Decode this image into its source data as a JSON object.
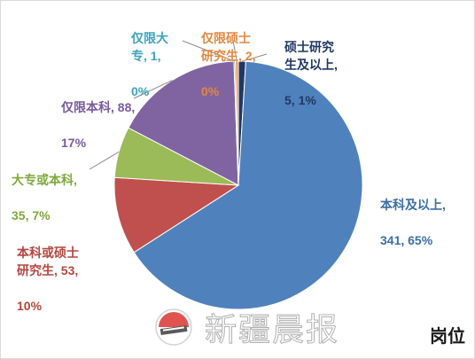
{
  "chart_data": {
    "type": "pie",
    "title": "",
    "legend": "none",
    "axis_title": "岗位",
    "slices": [
      {
        "name": "本科及以上",
        "value": 341,
        "percent": "65%",
        "color": "#4f81bd"
      },
      {
        "name": "本科或硕士研究生",
        "value": 53,
        "percent": "10%",
        "color": "#c0504d"
      },
      {
        "name": "大专或本科",
        "value": 35,
        "percent": "7%",
        "color": "#9bbb59"
      },
      {
        "name": "仅限本科",
        "value": 88,
        "percent": "17%",
        "color": "#8064a2"
      },
      {
        "name": "仅限大专",
        "value": 1,
        "percent": "0%",
        "color": "#4bacc6"
      },
      {
        "name": "仅限硕士研究生",
        "value": 2,
        "percent": "0%",
        "color": "#f79646"
      },
      {
        "name": "硕士研究生及以上",
        "value": 5,
        "percent": "1%",
        "color": "#1f3864"
      }
    ],
    "labels": [
      {
        "line1": "本科及以上,",
        "line2": "341, 65%"
      },
      {
        "line1": "本科或硕士\n研究生, 53,",
        "line2": "10%"
      },
      {
        "line1": "大专或本科,",
        "line2": "35, 7%"
      },
      {
        "line1": "仅限本科, 88,",
        "line2": "17%"
      },
      {
        "line1": "仅限大\n专, 1,",
        "line2": "0%"
      },
      {
        "line1": "仅限硕士\n研究生, 2,",
        "line2": "0%"
      },
      {
        "line1": "硕士研究\n生及以上,",
        "line2": "5, 1%"
      }
    ]
  },
  "watermark": {
    "text": "新疆晨报",
    "logo_icon": "newspaper-logo-icon"
  }
}
